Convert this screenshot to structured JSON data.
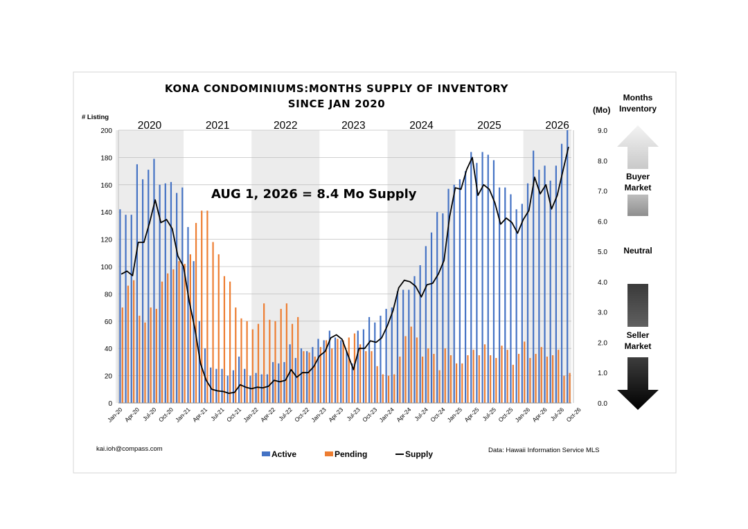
{
  "chart_data": {
    "type": "bar",
    "title": "KONA CONDOMINIUMS:MONTHS SUPPLY OF INVENTORY",
    "subtitle": "SINCE JAN 2020",
    "ylabel": "# Listing",
    "y2label": "(Mo)",
    "ylim": [
      0,
      200
    ],
    "yticks": [
      0,
      20,
      40,
      60,
      80,
      100,
      120,
      140,
      160,
      180,
      200
    ],
    "y2lim": [
      0,
      9
    ],
    "y2ticks": [
      "0.0",
      "1.0",
      "2.0",
      "3.0",
      "4.0",
      "5.0",
      "6.0",
      "7.0",
      "8.0",
      "9.0"
    ],
    "years": [
      "2020",
      "2021",
      "2022",
      "2023",
      "2024",
      "2025",
      "2026"
    ],
    "x_tick_labels": [
      "Jan-20",
      "Apr-20",
      "Jul-20",
      "Oct-20",
      "Jan-21",
      "Apr-21",
      "Jul-21",
      "Oct-21",
      "Jan-22",
      "Apr-22",
      "Jul-22",
      "Oct-22",
      "Jan-23",
      "Apr-23",
      "Jul-23",
      "Oct-23",
      "Jan-24",
      "Apr-24",
      "Jul-24",
      "Oct-24",
      "Jan-25",
      "Apr-25",
      "Jul-25",
      "Oct-25",
      "Jan-26",
      "Apr-26",
      "Jul-26",
      "Oct-26"
    ],
    "grid": true,
    "legend_position": "bottom",
    "series": [
      {
        "name": "Active",
        "color": "#4472C4",
        "values": [
          142,
          138,
          138,
          175,
          164,
          171,
          179,
          160,
          161,
          162,
          154,
          158,
          129,
          104,
          60,
          40,
          26,
          25,
          25,
          20,
          24,
          34,
          25,
          20,
          22,
          21,
          21,
          30,
          29,
          30,
          43,
          33,
          40,
          38,
          41,
          47,
          46,
          53,
          48,
          46,
          38,
          29,
          53,
          54,
          63,
          59,
          64,
          69,
          70,
          82,
          83,
          83,
          93,
          101,
          115,
          125,
          140,
          139,
          157,
          160,
          164,
          170,
          184,
          176,
          184,
          182,
          178,
          158,
          158,
          153,
          142,
          146,
          161,
          185,
          171,
          174,
          163,
          174,
          190,
          200
        ]
      },
      {
        "name": "Pending",
        "color": "#ED7D31",
        "values": [
          70,
          86,
          90,
          64,
          59,
          70,
          69,
          89,
          95,
          98,
          104,
          102,
          109,
          132,
          141,
          141,
          118,
          109,
          93,
          89,
          70,
          62,
          60,
          54,
          58,
          73,
          61,
          60,
          69,
          73,
          58,
          63,
          38,
          37,
          34,
          41,
          46,
          40,
          47,
          46,
          48,
          51,
          43,
          38,
          38,
          27,
          21,
          20,
          21,
          34,
          49,
          56,
          48,
          34,
          40,
          36,
          24,
          40,
          35,
          29,
          29,
          35,
          39,
          35,
          43,
          35,
          33,
          42,
          39,
          28,
          36,
          45,
          33,
          36,
          41,
          34,
          35,
          39,
          20,
          22
        ]
      },
      {
        "name": "Supply",
        "color": "#000000",
        "axis": "right",
        "values": [
          4.25,
          4.35,
          4.2,
          5.3,
          5.3,
          5.95,
          6.7,
          5.95,
          6.05,
          5.75,
          4.85,
          4.5,
          3.35,
          2.45,
          1.3,
          0.75,
          0.45,
          0.4,
          0.38,
          0.32,
          0.35,
          0.6,
          0.52,
          0.47,
          0.52,
          0.5,
          0.55,
          0.75,
          0.7,
          0.75,
          1.1,
          0.85,
          1.0,
          1.0,
          1.2,
          1.55,
          1.7,
          2.15,
          2.25,
          2.1,
          1.6,
          1.1,
          1.8,
          1.8,
          2.05,
          2.0,
          2.15,
          2.55,
          3.05,
          3.8,
          4.05,
          4.0,
          3.85,
          3.5,
          3.9,
          3.95,
          4.25,
          4.7,
          6.15,
          7.1,
          7.05,
          7.7,
          8.1,
          6.85,
          7.2,
          7.05,
          6.6,
          5.9,
          6.1,
          5.95,
          5.6,
          6.05,
          6.35,
          7.45,
          6.9,
          7.2,
          6.4,
          6.85,
          7.65,
          8.45
        ]
      }
    ],
    "annotation": "AUG 1, 2026 =  8.4 Mo Supply"
  },
  "side_panel": {
    "header_line1": "Months",
    "header_line2": "Inventory",
    "buyer_line1": "Buyer",
    "buyer_line2": "Market",
    "neutral": "Neutral",
    "seller_line1": "Seller",
    "seller_line2": "Market"
  },
  "footer": {
    "email": "kai.ioh@compass.com",
    "source": "Data: Hawaii Information Service MLS"
  }
}
